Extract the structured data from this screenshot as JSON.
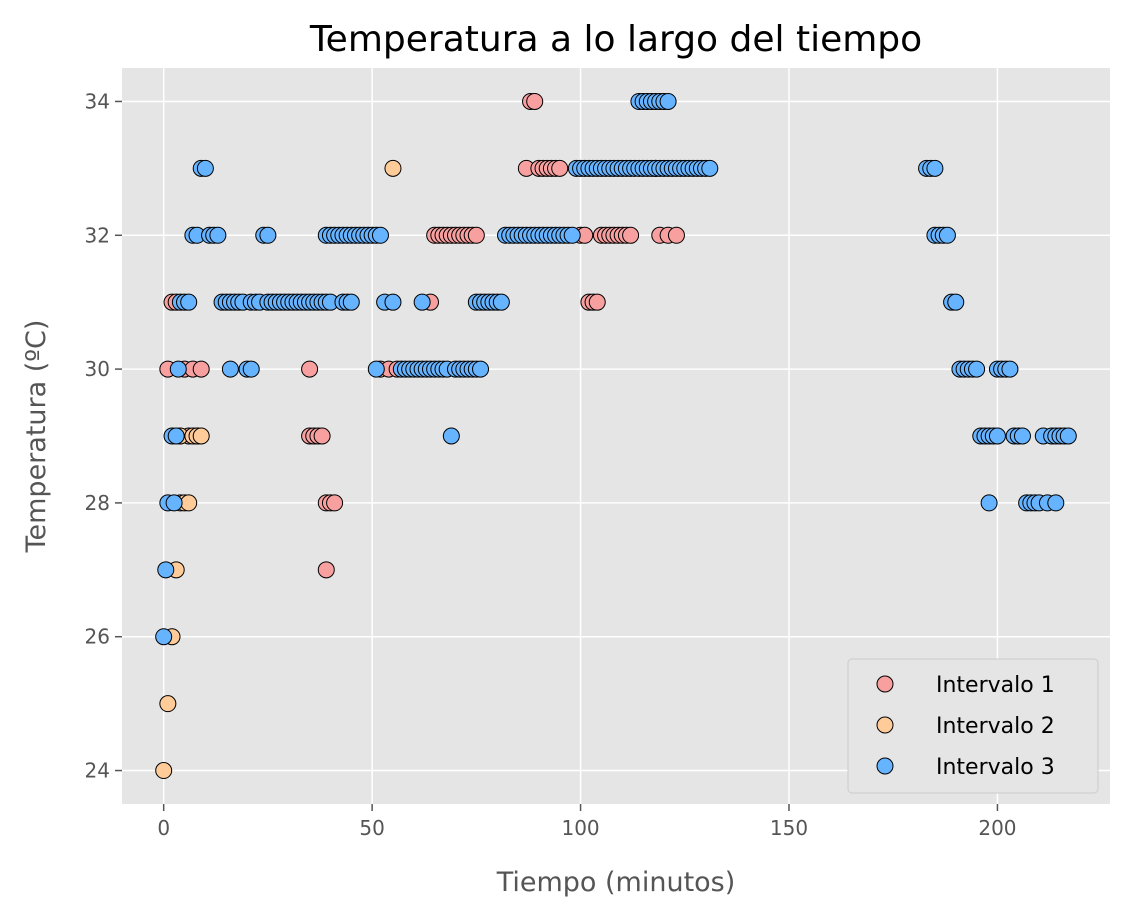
{
  "chart_data": {
    "type": "scatter",
    "title": "Temperatura a lo largo del tiempo",
    "xlabel": "Tiempo (minutos)",
    "ylabel": "Temperatura (ºC)",
    "xlim": [
      -10,
      227
    ],
    "ylim": [
      23.5,
      34.5
    ],
    "xticks": [
      0,
      50,
      100,
      150,
      200
    ],
    "yticks": [
      24,
      26,
      28,
      30,
      32,
      34
    ],
    "grid": true,
    "legend_position": "lower-right",
    "background_color": "#E5E5E5",
    "series": [
      {
        "name": "Intervalo 1",
        "color": "#F8A0A0",
        "points": [
          [
            1,
            30
          ],
          [
            2,
            31
          ],
          [
            3,
            31
          ],
          [
            4,
            28
          ],
          [
            5,
            30
          ],
          [
            6,
            29
          ],
          [
            7,
            30
          ],
          [
            8,
            29
          ],
          [
            9,
            30
          ],
          [
            35,
            30
          ],
          [
            35,
            29
          ],
          [
            36,
            29
          ],
          [
            37,
            29
          ],
          [
            38,
            29
          ],
          [
            39,
            28
          ],
          [
            39,
            27
          ],
          [
            40,
            28
          ],
          [
            41,
            28
          ],
          [
            64,
            31
          ],
          [
            65,
            32
          ],
          [
            66,
            32
          ],
          [
            67,
            32
          ],
          [
            68,
            32
          ],
          [
            69,
            32
          ],
          [
            70,
            32
          ],
          [
            71,
            32
          ],
          [
            72,
            32
          ],
          [
            73,
            32
          ],
          [
            74,
            32
          ],
          [
            75,
            32
          ],
          [
            52,
            30
          ],
          [
            54,
            30
          ],
          [
            56,
            30
          ],
          [
            87,
            33
          ],
          [
            88,
            34
          ],
          [
            89,
            34
          ],
          [
            90,
            33
          ],
          [
            91,
            33
          ],
          [
            92,
            33
          ],
          [
            93,
            33
          ],
          [
            94,
            33
          ],
          [
            95,
            33
          ],
          [
            100,
            32
          ],
          [
            101,
            32
          ],
          [
            102,
            31
          ],
          [
            103,
            31
          ],
          [
            104,
            31
          ],
          [
            105,
            32
          ],
          [
            106,
            32
          ],
          [
            107,
            32
          ],
          [
            108,
            32
          ],
          [
            109,
            32
          ],
          [
            110,
            32
          ],
          [
            111,
            32
          ],
          [
            112,
            32
          ],
          [
            118,
            33
          ],
          [
            119,
            32
          ],
          [
            121,
            32
          ],
          [
            123,
            32
          ]
        ]
      },
      {
        "name": "Intervalo 2",
        "color": "#FFCB99",
        "points": [
          [
            0,
            24
          ],
          [
            1,
            25
          ],
          [
            2,
            26
          ],
          [
            3,
            27
          ],
          [
            4,
            29
          ],
          [
            5,
            28
          ],
          [
            6,
            28
          ],
          [
            7,
            29
          ],
          [
            8,
            29
          ],
          [
            9,
            29
          ],
          [
            55,
            33
          ]
        ]
      },
      {
        "name": "Intervalo 3",
        "color": "#66B3FF",
        "points": [
          [
            0,
            26
          ],
          [
            0.5,
            27
          ],
          [
            1,
            28
          ],
          [
            2,
            29
          ],
          [
            2.5,
            28
          ],
          [
            3,
            29
          ],
          [
            3.5,
            30
          ],
          [
            4,
            31
          ],
          [
            5,
            31
          ],
          [
            6,
            31
          ],
          [
            7,
            32
          ],
          [
            8,
            32
          ],
          [
            9,
            33
          ],
          [
            10,
            33
          ],
          [
            11,
            32
          ],
          [
            12,
            32
          ],
          [
            13,
            32
          ],
          [
            14,
            31
          ],
          [
            15,
            31
          ],
          [
            16,
            30
          ],
          [
            16,
            31
          ],
          [
            17,
            31
          ],
          [
            18,
            31
          ],
          [
            19,
            31
          ],
          [
            20,
            30
          ],
          [
            21,
            30
          ],
          [
            21,
            31
          ],
          [
            22,
            31
          ],
          [
            23,
            31
          ],
          [
            24,
            32
          ],
          [
            25,
            32
          ],
          [
            25,
            31
          ],
          [
            26,
            31
          ],
          [
            27,
            31
          ],
          [
            28,
            31
          ],
          [
            29,
            31
          ],
          [
            30,
            31
          ],
          [
            31,
            31
          ],
          [
            32,
            31
          ],
          [
            33,
            31
          ],
          [
            34,
            31
          ],
          [
            35,
            31
          ],
          [
            36,
            31
          ],
          [
            37,
            31
          ],
          [
            38,
            31
          ],
          [
            39,
            31
          ],
          [
            40,
            31
          ],
          [
            39,
            32
          ],
          [
            40,
            32
          ],
          [
            41,
            32
          ],
          [
            42,
            32
          ],
          [
            43,
            32
          ],
          [
            44,
            32
          ],
          [
            45,
            32
          ],
          [
            46,
            32
          ],
          [
            47,
            32
          ],
          [
            48,
            32
          ],
          [
            49,
            32
          ],
          [
            50,
            32
          ],
          [
            51,
            32
          ],
          [
            52,
            32
          ],
          [
            43,
            31
          ],
          [
            44,
            31
          ],
          [
            45,
            31
          ],
          [
            51,
            30
          ],
          [
            53,
            31
          ],
          [
            55,
            31
          ],
          [
            57,
            30
          ],
          [
            58,
            30
          ],
          [
            59,
            30
          ],
          [
            60,
            30
          ],
          [
            61,
            30
          ],
          [
            62,
            30
          ],
          [
            63,
            30
          ],
          [
            64,
            30
          ],
          [
            65,
            30
          ],
          [
            66,
            30
          ],
          [
            67,
            30
          ],
          [
            68,
            30
          ],
          [
            70,
            30
          ],
          [
            71,
            30
          ],
          [
            72,
            30
          ],
          [
            73,
            30
          ],
          [
            74,
            30
          ],
          [
            75,
            30
          ],
          [
            76,
            30
          ],
          [
            62,
            31
          ],
          [
            69,
            29
          ],
          [
            75,
            31
          ],
          [
            76,
            31
          ],
          [
            77,
            31
          ],
          [
            78,
            31
          ],
          [
            79,
            31
          ],
          [
            80,
            31
          ],
          [
            81,
            31
          ],
          [
            82,
            32
          ],
          [
            83,
            32
          ],
          [
            84,
            32
          ],
          [
            85,
            32
          ],
          [
            86,
            32
          ],
          [
            87,
            32
          ],
          [
            88,
            32
          ],
          [
            89,
            32
          ],
          [
            90,
            32
          ],
          [
            91,
            32
          ],
          [
            92,
            32
          ],
          [
            93,
            32
          ],
          [
            94,
            32
          ],
          [
            95,
            32
          ],
          [
            96,
            32
          ],
          [
            97,
            32
          ],
          [
            98,
            32
          ],
          [
            99,
            33
          ],
          [
            100,
            33
          ],
          [
            101,
            33
          ],
          [
            102,
            33
          ],
          [
            103,
            33
          ],
          [
            104,
            33
          ],
          [
            105,
            33
          ],
          [
            106,
            33
          ],
          [
            107,
            33
          ],
          [
            108,
            33
          ],
          [
            109,
            33
          ],
          [
            110,
            33
          ],
          [
            111,
            33
          ],
          [
            112,
            33
          ],
          [
            113,
            33
          ],
          [
            114,
            33
          ],
          [
            115,
            33
          ],
          [
            116,
            33
          ],
          [
            117,
            33
          ],
          [
            118,
            33
          ],
          [
            119,
            33
          ],
          [
            120,
            33
          ],
          [
            121,
            33
          ],
          [
            122,
            33
          ],
          [
            123,
            33
          ],
          [
            124,
            33
          ],
          [
            125,
            33
          ],
          [
            126,
            33
          ],
          [
            127,
            33
          ],
          [
            128,
            33
          ],
          [
            129,
            33
          ],
          [
            130,
            33
          ],
          [
            131,
            33
          ],
          [
            114,
            34
          ],
          [
            115,
            34
          ],
          [
            116,
            34
          ],
          [
            117,
            34
          ],
          [
            118,
            34
          ],
          [
            119,
            34
          ],
          [
            120,
            34
          ],
          [
            121,
            34
          ],
          [
            183,
            33
          ],
          [
            184,
            33
          ],
          [
            185,
            33
          ],
          [
            185,
            32
          ],
          [
            186,
            32
          ],
          [
            187,
            32
          ],
          [
            188,
            32
          ],
          [
            189,
            31
          ],
          [
            190,
            31
          ],
          [
            191,
            30
          ],
          [
            192,
            30
          ],
          [
            193,
            30
          ],
          [
            194,
            30
          ],
          [
            195,
            30
          ],
          [
            196,
            29
          ],
          [
            197,
            29
          ],
          [
            198,
            29
          ],
          [
            198,
            28
          ],
          [
            199,
            29
          ],
          [
            200,
            29
          ],
          [
            200,
            30
          ],
          [
            201,
            30
          ],
          [
            202,
            30
          ],
          [
            203,
            30
          ],
          [
            204,
            29
          ],
          [
            205,
            29
          ],
          [
            206,
            29
          ],
          [
            207,
            28
          ],
          [
            208,
            28
          ],
          [
            209,
            28
          ],
          [
            210,
            28
          ],
          [
            211,
            29
          ],
          [
            212,
            28
          ],
          [
            213,
            29
          ],
          [
            214,
            29
          ],
          [
            214,
            28
          ],
          [
            215,
            29
          ],
          [
            216,
            29
          ],
          [
            217,
            29
          ]
        ]
      }
    ]
  }
}
